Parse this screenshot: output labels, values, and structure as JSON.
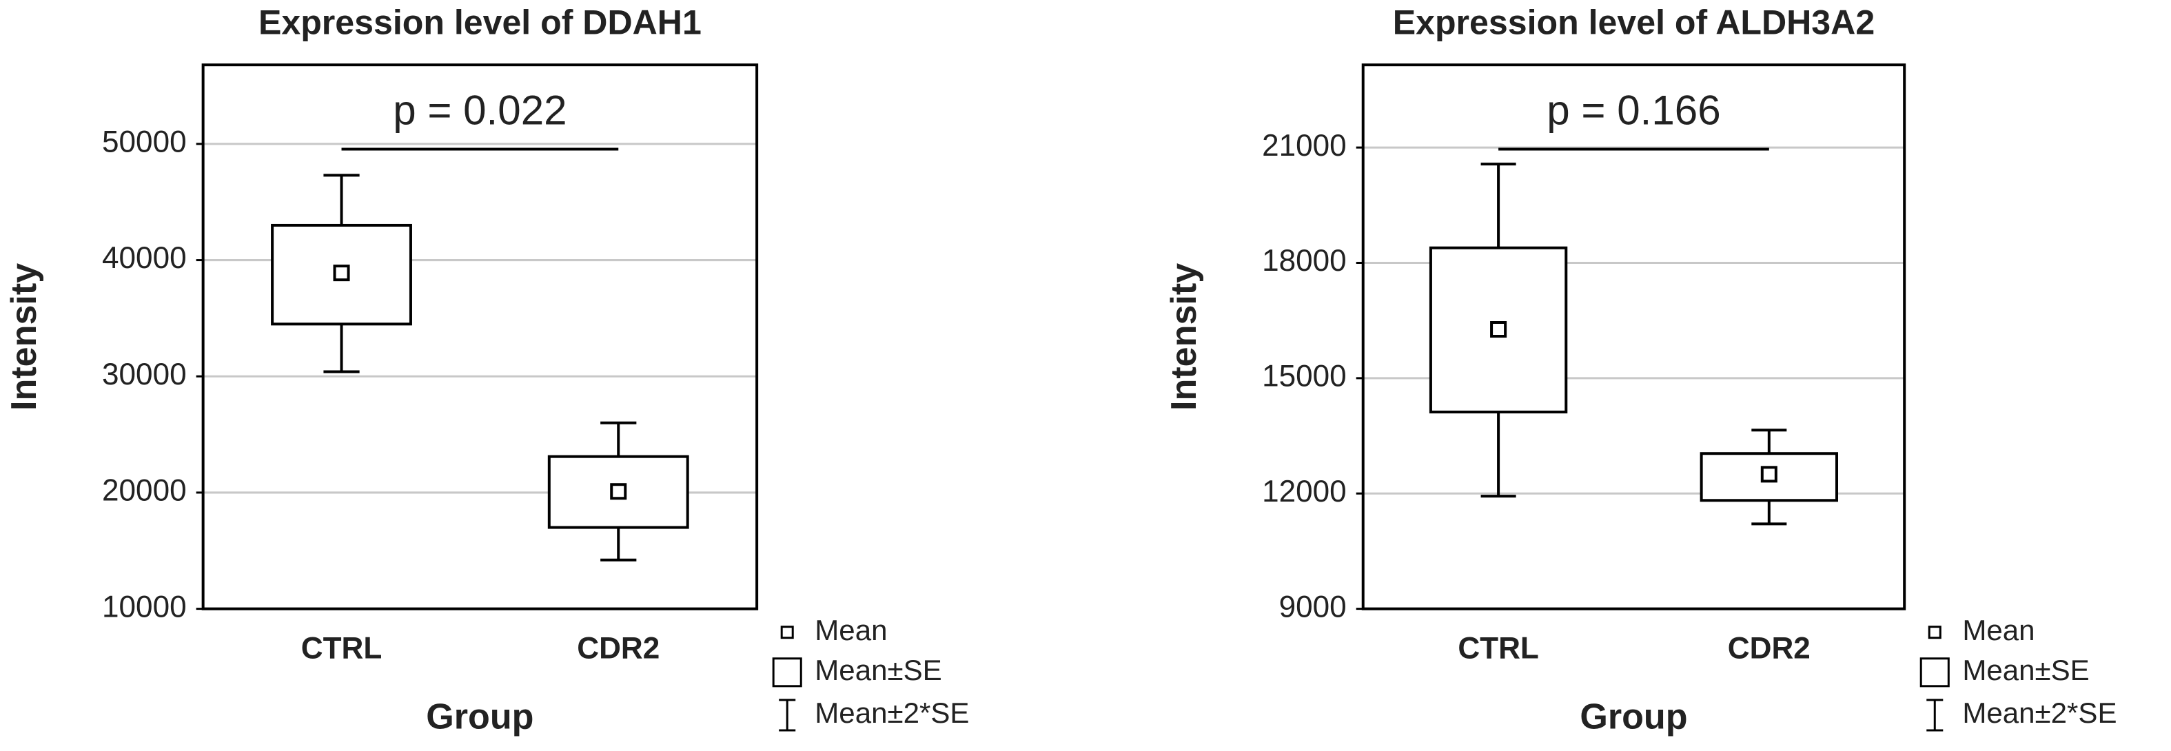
{
  "chart_data": [
    {
      "type": "box",
      "title": "Expression level of DDAH1",
      "xlabel": "Group",
      "ylabel": "Intensity",
      "categories": [
        "CTRL",
        "CDR2"
      ],
      "mean": [
        38900,
        20100
      ],
      "box_low": [
        34500,
        17000
      ],
      "box_high": [
        43000,
        23100
      ],
      "whisker_low": [
        30400,
        14200
      ],
      "whisker_high": [
        47300,
        26000
      ],
      "ylim": [
        10000,
        56800
      ],
      "yticks": [
        10000,
        20000,
        30000,
        40000,
        50000
      ],
      "grid": true,
      "color": "#000000",
      "annotation": "p = 0.022",
      "legend": [
        "Mean",
        "Mean±SE",
        "Mean±2*SE"
      ]
    },
    {
      "type": "box",
      "title": "Expression level of ALDH3A2",
      "xlabel": "Group",
      "ylabel": "Intensity",
      "categories": [
        "CTRL",
        "CDR2"
      ],
      "mean": [
        16270,
        12500
      ],
      "box_low": [
        14120,
        11820
      ],
      "box_high": [
        18390,
        13040
      ],
      "whisker_low": [
        11930,
        11210
      ],
      "whisker_high": [
        20570,
        13650
      ],
      "ylim": [
        9000,
        23150
      ],
      "yticks": [
        9000,
        12000,
        15000,
        18000,
        21000
      ],
      "grid": true,
      "color": "#000000",
      "annotation": "p = 0.166",
      "legend": [
        "Mean",
        "Mean±SE",
        "Mean±2*SE"
      ]
    }
  ]
}
